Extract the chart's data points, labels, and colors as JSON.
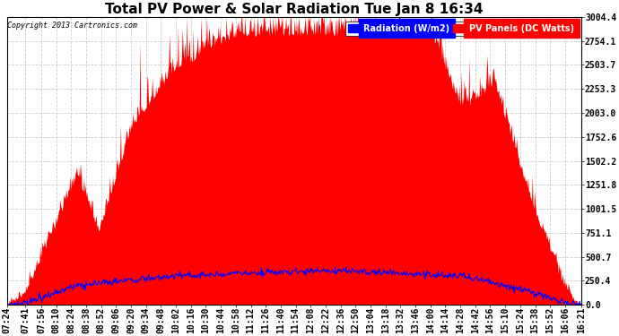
{
  "title": "Total PV Power & Solar Radiation Tue Jan 8 16:34",
  "copyright": "Copyright 2013 Cartronics.com",
  "legend_radiation": "Radiation (W/m2)",
  "legend_pv": "PV Panels (DC Watts)",
  "background_color": "#ffffff",
  "plot_bg_color": "#ffffff",
  "yticks": [
    0.0,
    250.4,
    500.7,
    751.1,
    1001.5,
    1251.8,
    1502.2,
    1752.6,
    2003.0,
    2253.3,
    2503.7,
    2754.1,
    3004.4
  ],
  "ymax": 3004.4,
  "ymin": 0.0,
  "pv_color": "#ff0000",
  "radiation_color": "#0000ff",
  "grid_color": "#cccccc",
  "title_fontsize": 11,
  "tick_fontsize": 7,
  "xtick_labels": [
    "07:24",
    "07:41",
    "07:56",
    "08:10",
    "08:24",
    "08:38",
    "08:52",
    "09:06",
    "09:20",
    "09:34",
    "09:48",
    "10:02",
    "10:16",
    "10:30",
    "10:44",
    "10:58",
    "11:12",
    "11:26",
    "11:40",
    "11:54",
    "12:08",
    "12:22",
    "12:36",
    "12:50",
    "13:04",
    "13:18",
    "13:32",
    "13:46",
    "14:00",
    "14:14",
    "14:28",
    "14:42",
    "14:56",
    "15:10",
    "15:24",
    "15:38",
    "15:52",
    "16:06",
    "16:21"
  ]
}
